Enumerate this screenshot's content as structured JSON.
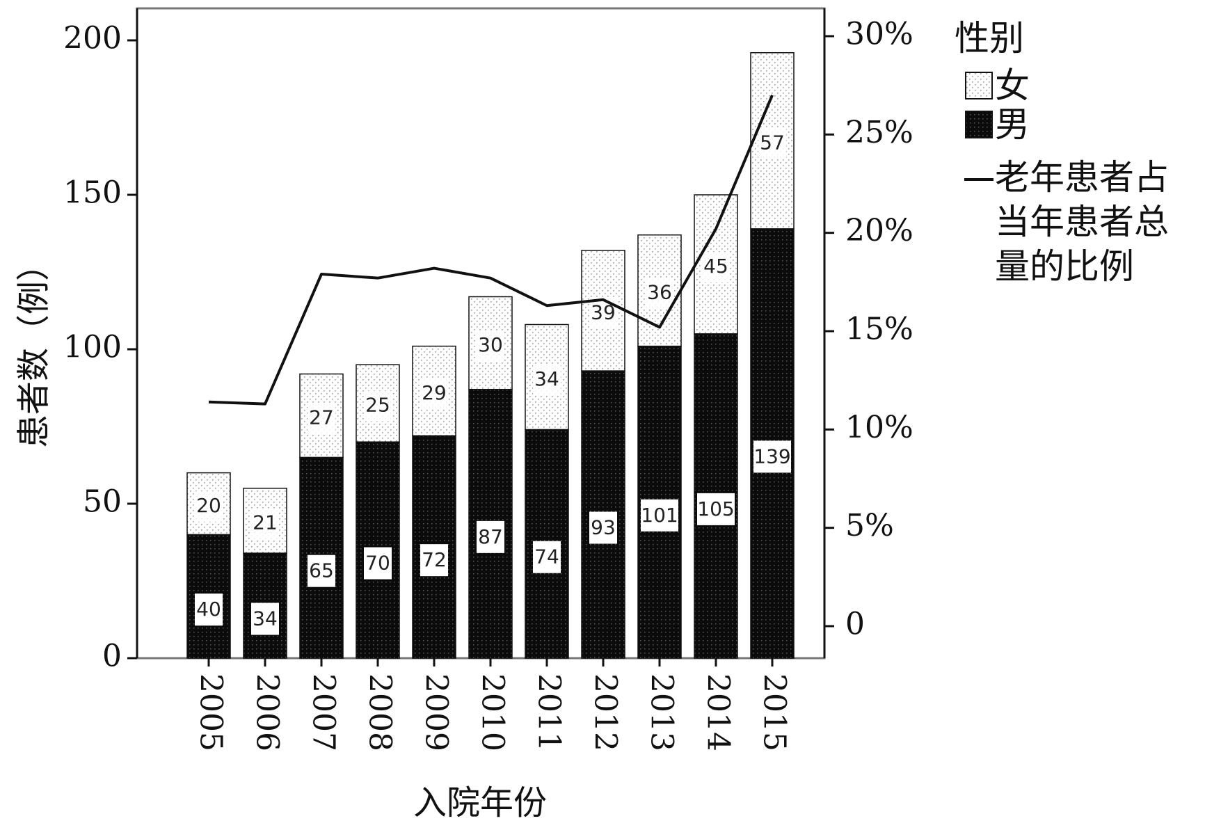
{
  "chart_data": {
    "type": "bar",
    "stacked": true,
    "categories": [
      "2005",
      "2006",
      "2007",
      "2008",
      "2009",
      "2010",
      "2011",
      "2012",
      "2013",
      "2014",
      "2015"
    ],
    "series": [
      {
        "name": "男",
        "values": [
          40,
          34,
          65,
          70,
          72,
          87,
          74,
          93,
          101,
          105,
          139
        ],
        "pattern": "dense-black-dots"
      },
      {
        "name": "女",
        "values": [
          20,
          21,
          27,
          25,
          29,
          30,
          34,
          39,
          36,
          45,
          57
        ],
        "pattern": "sparse-dots"
      }
    ],
    "line_series": {
      "name": "老年患者占当年患者总量的比例",
      "name_lines": [
        "老年患者占",
        "当年患者总",
        "量的比例"
      ],
      "axis": "right",
      "values": [
        11.4,
        11.3,
        17.9,
        17.7,
        18.2,
        17.7,
        16.3,
        16.6,
        15.2,
        20.2,
        27.0
      ]
    },
    "xlabel": "入院年份",
    "ylabel": "患者数（例）",
    "ylim": [
      0,
      200
    ],
    "yticks": [
      0,
      50,
      100,
      150,
      200
    ],
    "y2lim": [
      0,
      30
    ],
    "y2ticks": [
      0,
      5,
      10,
      15,
      20,
      25,
      30
    ],
    "y2tick_labels": [
      "0",
      "5%",
      "10%",
      "15%",
      "20%",
      "25%",
      "30%"
    ],
    "legend": {
      "title": "性别",
      "placement": "right"
    },
    "grid": false,
    "colors": {
      "male_fill": "#0b0b0b",
      "female_fill": "#ffffff",
      "line": "#111111",
      "axis": "#111111",
      "frame": "#777777"
    }
  }
}
